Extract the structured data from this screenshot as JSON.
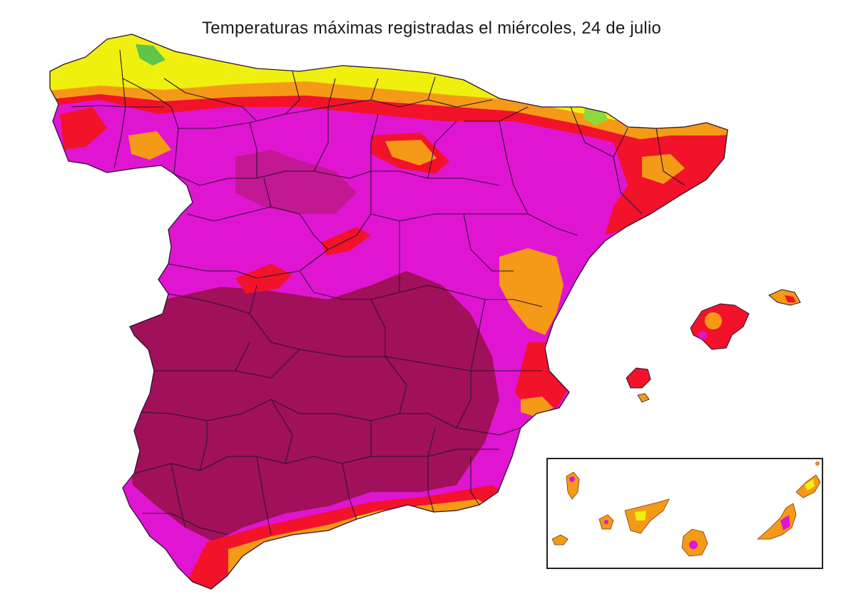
{
  "title": "Temperaturas máximas registradas el miércoles, 24 de julio",
  "map": {
    "region": "España",
    "colors": {
      "very_hot": "#a1105a",
      "hot": "#e015d2",
      "warm_red": "#f2122a",
      "warm_orange": "#f59a16",
      "mild_yellow": "#f0f00e",
      "cool_green": "#5ec64a",
      "border": "#2a1430"
    }
  }
}
